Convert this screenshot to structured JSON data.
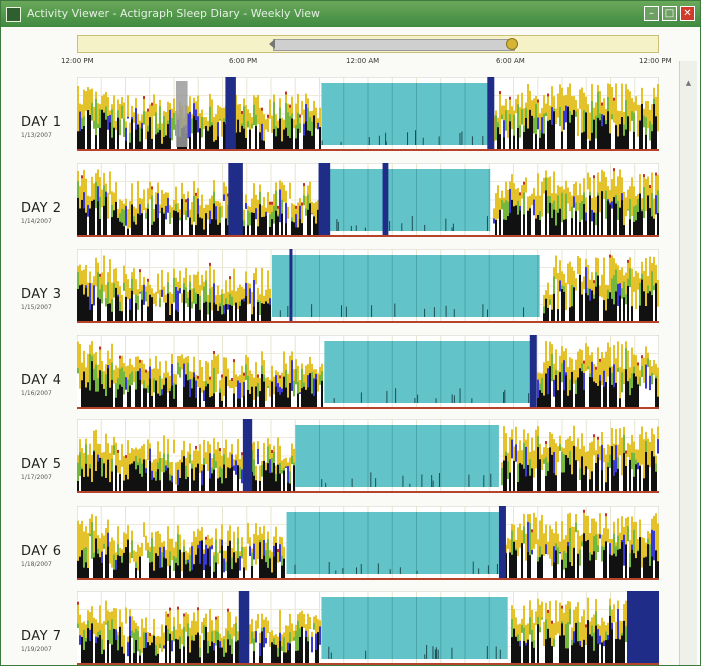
{
  "window": {
    "title": "Activity Viewer - Actigraph Sleep Diary - Weekly View",
    "minimize_glyph": "–",
    "maximize_glyph": "□",
    "close_glyph": "✕"
  },
  "colors": {
    "sleep_band": "#62c3c8",
    "marker": "#1f2d88",
    "activity_yellow": "#e4c22b",
    "activity_green": "#76b83d",
    "activity_black": "#111111",
    "activity_red": "#c2302a",
    "activity_blue": "#3a3ad0",
    "baseline": "#b5442b"
  },
  "navigator": {
    "time_labels": [
      "12:00 PM",
      "6:00 PM",
      "12:00 AM",
      "6:00 AM",
      "12:00 PM"
    ]
  },
  "days": [
    {
      "label": "DAY 1",
      "date": "1/13/2007",
      "seed": 11,
      "sleep": {
        "start": 0.42,
        "end": 0.71
      },
      "markers": [
        [
          0.255,
          0.018
        ],
        [
          0.705,
          0.012
        ]
      ],
      "gray": [
        [
          0.17,
          0.02
        ]
      ],
      "dense_right": 0.75
    },
    {
      "label": "DAY 2",
      "date": "1/14/2007",
      "seed": 23,
      "sleep": {
        "start": 0.42,
        "end": 0.71
      },
      "markers": [
        [
          0.26,
          0.025
        ],
        [
          0.415,
          0.02
        ],
        [
          0.525,
          0.01
        ]
      ],
      "gray": [],
      "dense_right": 0.74
    },
    {
      "label": "DAY 3",
      "date": "1/15/2007",
      "seed": 37,
      "sleep": {
        "start": 0.335,
        "end": 0.795
      },
      "markers": [
        [
          0.365,
          0.005
        ]
      ],
      "gray": [],
      "dense_right": 0.82
    },
    {
      "label": "DAY 4",
      "date": "1/16/2007",
      "seed": 41,
      "sleep": {
        "start": 0.425,
        "end": 0.785
      },
      "markers": [
        [
          0.778,
          0.012
        ]
      ],
      "gray": [],
      "dense_right": 0.8
    },
    {
      "label": "DAY 5",
      "date": "1/17/2007",
      "seed": 53,
      "sleep": {
        "start": 0.375,
        "end": 0.725
      },
      "markers": [
        [
          0.285,
          0.016
        ]
      ],
      "gray": [],
      "dense_right": 0.73
    },
    {
      "label": "DAY 6",
      "date": "1/18/2007",
      "seed": 67,
      "sleep": {
        "start": 0.36,
        "end": 0.725
      },
      "markers": [
        [
          0.725,
          0.012
        ]
      ],
      "gray": [],
      "dense_right": 0.74
    },
    {
      "label": "DAY 7",
      "date": "1/19/2007",
      "seed": 79,
      "sleep": {
        "start": 0.42,
        "end": 0.74
      },
      "markers": [
        [
          0.278,
          0.018
        ],
        [
          0.945,
          0.055
        ]
      ],
      "gray": [],
      "dense_right": 0.74
    }
  ]
}
